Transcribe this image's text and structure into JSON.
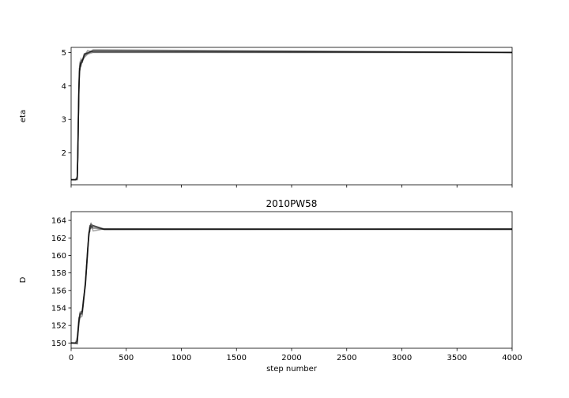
{
  "chart_data": [
    {
      "type": "line",
      "title": "",
      "xlabel": "",
      "ylabel": "eta",
      "xlim": [
        0,
        4000
      ],
      "ylim": [
        1.05,
        5.15
      ],
      "yticks": [
        2,
        3,
        4,
        5
      ],
      "xticks": [
        0,
        500,
        1000,
        1500,
        2000,
        2500,
        3000,
        3500,
        4000
      ],
      "x_tick_labels_shown": false,
      "grid": false,
      "legend": "none",
      "line_color": "#000000",
      "line_alpha": 0.35,
      "series": [
        {
          "x": [
            0,
            40,
            55,
            60,
            65,
            70,
            75,
            80,
            90,
            100,
            120,
            150,
            200,
            4000
          ],
          "values": [
            1.2,
            1.2,
            1.25,
            1.9,
            2.9,
            3.9,
            4.4,
            4.6,
            4.7,
            4.75,
            4.85,
            4.95,
            5.0,
            5.0
          ]
        }
      ]
    },
    {
      "type": "line",
      "title": "2010PW58",
      "xlabel": "step number",
      "ylabel": "D",
      "xlim": [
        0,
        4000
      ],
      "ylim": [
        149.4,
        165.0
      ],
      "yticks": [
        150,
        152,
        154,
        156,
        158,
        160,
        162,
        164
      ],
      "xticks": [
        0,
        500,
        1000,
        1500,
        2000,
        2500,
        3000,
        3500,
        4000
      ],
      "grid": false,
      "legend": "none",
      "line_color": "#000000",
      "line_alpha": 0.35,
      "series": [
        {
          "x": [
            0,
            40,
            55,
            70,
            80,
            100,
            110,
            130,
            150,
            160,
            170,
            180,
            200,
            300,
            4000
          ],
          "values": [
            150.0,
            150.0,
            150.3,
            152.5,
            153.2,
            153.5,
            154.5,
            157.0,
            160.5,
            162.3,
            163.0,
            163.3,
            163.1,
            163.0,
            163.0
          ]
        }
      ]
    }
  ]
}
